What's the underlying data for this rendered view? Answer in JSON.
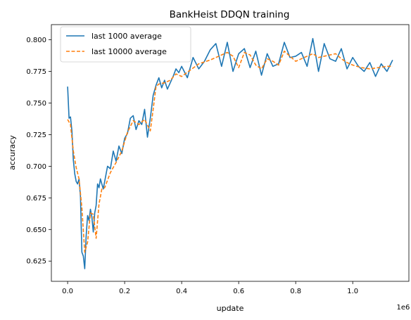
{
  "chart_data": {
    "type": "line",
    "title": "BankHeist DDQN training",
    "xlabel": "update",
    "ylabel": "accuracy",
    "x_offset_label": "1e6",
    "xlim": [
      -0.057,
      1.197
    ],
    "ylim": [
      0.609,
      0.812
    ],
    "x_ticks": [
      0.0,
      0.2,
      0.4,
      0.6,
      0.8,
      1.0
    ],
    "x_tick_labels": [
      "0.0",
      "0.2",
      "0.4",
      "0.6",
      "0.8",
      "1.0"
    ],
    "y_ticks": [
      0.625,
      0.65,
      0.675,
      0.7,
      0.725,
      0.75,
      0.775,
      0.8
    ],
    "y_tick_labels": [
      "0.625",
      "0.650",
      "0.675",
      "0.700",
      "0.725",
      "0.750",
      "0.775",
      "0.800"
    ],
    "grid": false,
    "legend": {
      "position": "top-left"
    },
    "series": [
      {
        "name": "last 1000 average",
        "color": "#1f77b4",
        "style": "solid",
        "x": [
          0.0,
          0.005,
          0.01,
          0.015,
          0.02,
          0.025,
          0.03,
          0.035,
          0.04,
          0.045,
          0.05,
          0.055,
          0.06,
          0.065,
          0.07,
          0.075,
          0.08,
          0.085,
          0.09,
          0.095,
          0.1,
          0.105,
          0.11,
          0.115,
          0.12,
          0.125,
          0.13,
          0.14,
          0.15,
          0.16,
          0.17,
          0.18,
          0.19,
          0.2,
          0.21,
          0.22,
          0.23,
          0.24,
          0.25,
          0.26,
          0.27,
          0.28,
          0.29,
          0.3,
          0.31,
          0.32,
          0.33,
          0.34,
          0.35,
          0.36,
          0.37,
          0.38,
          0.39,
          0.4,
          0.42,
          0.44,
          0.46,
          0.48,
          0.5,
          0.52,
          0.54,
          0.56,
          0.58,
          0.6,
          0.62,
          0.64,
          0.66,
          0.68,
          0.7,
          0.72,
          0.74,
          0.76,
          0.78,
          0.8,
          0.82,
          0.84,
          0.86,
          0.88,
          0.9,
          0.92,
          0.94,
          0.96,
          0.98,
          1.0,
          1.02,
          1.04,
          1.06,
          1.08,
          1.1,
          1.12,
          1.14
        ],
        "y": [
          0.763,
          0.738,
          0.739,
          0.728,
          0.705,
          0.694,
          0.688,
          0.686,
          0.69,
          0.676,
          0.632,
          0.629,
          0.619,
          0.645,
          0.661,
          0.657,
          0.666,
          0.66,
          0.648,
          0.663,
          0.669,
          0.686,
          0.683,
          0.69,
          0.686,
          0.682,
          0.688,
          0.7,
          0.698,
          0.712,
          0.704,
          0.716,
          0.71,
          0.722,
          0.726,
          0.738,
          0.74,
          0.729,
          0.736,
          0.733,
          0.745,
          0.723,
          0.738,
          0.756,
          0.764,
          0.77,
          0.762,
          0.768,
          0.761,
          0.766,
          0.771,
          0.777,
          0.774,
          0.779,
          0.77,
          0.786,
          0.777,
          0.783,
          0.792,
          0.797,
          0.779,
          0.798,
          0.775,
          0.789,
          0.793,
          0.778,
          0.791,
          0.772,
          0.789,
          0.779,
          0.781,
          0.798,
          0.786,
          0.787,
          0.79,
          0.779,
          0.801,
          0.775,
          0.797,
          0.785,
          0.783,
          0.793,
          0.777,
          0.786,
          0.779,
          0.775,
          0.782,
          0.771,
          0.781,
          0.775,
          0.784
        ]
      },
      {
        "name": "last 10000 average",
        "color": "#ff7f0e",
        "style": "dashed",
        "x": [
          0.0,
          0.01,
          0.02,
          0.03,
          0.04,
          0.05,
          0.06,
          0.07,
          0.08,
          0.09,
          0.1,
          0.11,
          0.12,
          0.13,
          0.15,
          0.17,
          0.19,
          0.21,
          0.23,
          0.25,
          0.27,
          0.29,
          0.3,
          0.31,
          0.32,
          0.34,
          0.36,
          0.38,
          0.4,
          0.43,
          0.46,
          0.5,
          0.54,
          0.56,
          0.58,
          0.6,
          0.62,
          0.64,
          0.66,
          0.68,
          0.7,
          0.72,
          0.74,
          0.76,
          0.78,
          0.8,
          0.82,
          0.84,
          0.86,
          0.88,
          0.9,
          0.92,
          0.94,
          0.96,
          0.98,
          1.0,
          1.03,
          1.06,
          1.09,
          1.12,
          1.14
        ],
        "y": [
          0.737,
          0.733,
          0.712,
          0.699,
          0.69,
          0.667,
          0.632,
          0.64,
          0.663,
          0.662,
          0.643,
          0.67,
          0.682,
          0.683,
          0.695,
          0.703,
          0.712,
          0.727,
          0.736,
          0.733,
          0.737,
          0.728,
          0.745,
          0.763,
          0.765,
          0.766,
          0.768,
          0.773,
          0.771,
          0.776,
          0.781,
          0.784,
          0.788,
          0.79,
          0.787,
          0.778,
          0.79,
          0.788,
          0.78,
          0.777,
          0.785,
          0.783,
          0.78,
          0.791,
          0.787,
          0.783,
          0.785,
          0.787,
          0.789,
          0.786,
          0.787,
          0.788,
          0.789,
          0.785,
          0.782,
          0.78,
          0.778,
          0.777,
          0.778,
          0.779,
          0.779
        ]
      }
    ]
  }
}
